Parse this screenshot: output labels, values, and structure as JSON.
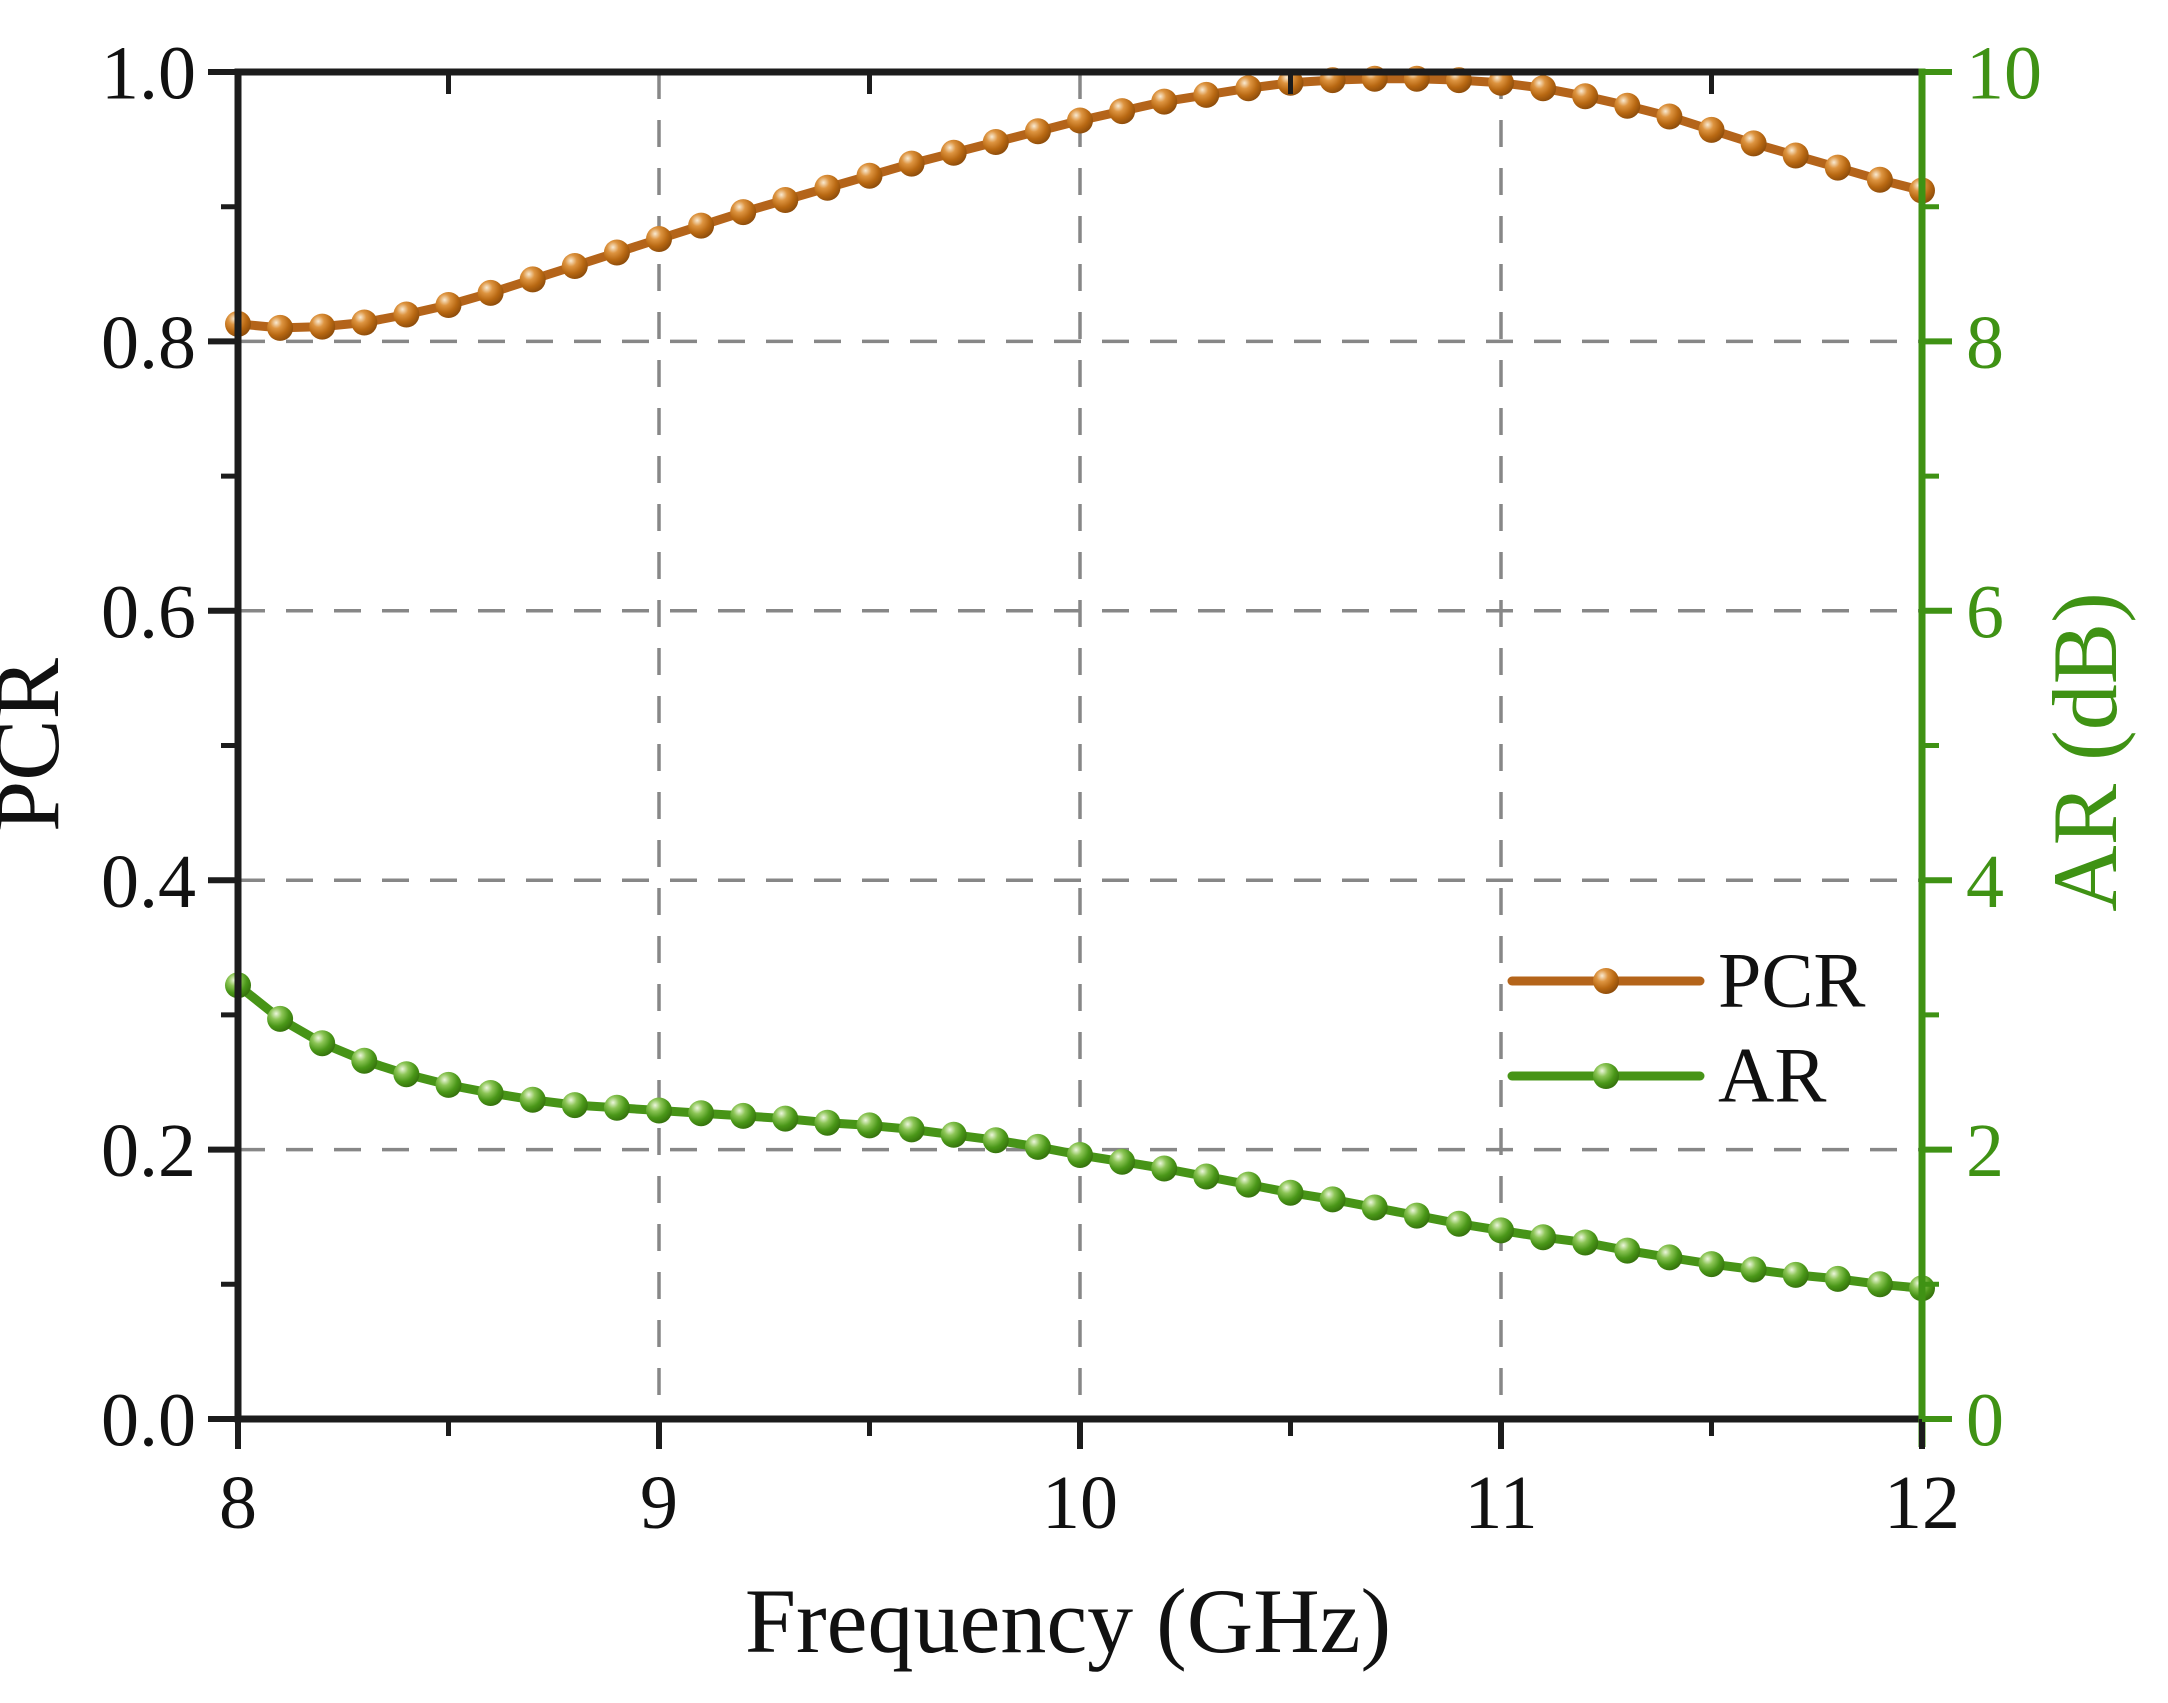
{
  "figure": {
    "xlabel": "Frequency (GHz)",
    "ylabel_left": "PCR",
    "ylabel_right": "AR (dB)"
  },
  "colors": {
    "pcr_line": "#b4641a",
    "ar_line": "#479417",
    "right_axis_green": "#3f9214",
    "grid_gray": "#878787",
    "axis_black": "#1c1c1c"
  },
  "chart_data": {
    "type": "line",
    "title": "",
    "xlabel": "Frequency (GHz)",
    "x_range": [
      8,
      12
    ],
    "x_major_ticks": [
      8,
      9,
      10,
      11,
      12
    ],
    "x_minor_ticks": [
      8.5,
      9.5,
      10.5,
      11.5
    ],
    "grid": "dashed gray; vertical at x=9,10,11; horizontal at left-axis 0.2,0.4,0.6,0.8",
    "grid_x": [
      9,
      10,
      11
    ],
    "grid_y_left": [
      0.2,
      0.4,
      0.6,
      0.8
    ],
    "left_axis": {
      "label": "PCR",
      "range": [
        0,
        1
      ],
      "major_ticks": [
        0,
        0.2,
        0.4,
        0.6,
        0.8,
        1.0
      ],
      "major_tick_labels": [
        "0.0",
        "0.2",
        "0.4",
        "0.6",
        "0.8",
        "1.0"
      ],
      "minor_ticks": [
        0.1,
        0.3,
        0.5,
        0.7,
        0.9
      ]
    },
    "right_axis": {
      "label": "AR (dB)",
      "range": [
        0,
        10
      ],
      "major_ticks": [
        0,
        2,
        4,
        6,
        8,
        10
      ],
      "major_tick_labels": [
        "0",
        "2",
        "4",
        "6",
        "8",
        "10"
      ],
      "minor_ticks": [
        1,
        3,
        5,
        7,
        9
      ]
    },
    "legend": {
      "position": "right-center, inside plot, no border",
      "entries": [
        "PCR",
        "AR"
      ]
    },
    "x": [
      8.0,
      8.1,
      8.2,
      8.3,
      8.4,
      8.5,
      8.6,
      8.7,
      8.8,
      8.9,
      9.0,
      9.1,
      9.2,
      9.3,
      9.4,
      9.5,
      9.6,
      9.7,
      9.8,
      9.9,
      10.0,
      10.1,
      10.2,
      10.3,
      10.4,
      10.5,
      10.6,
      10.7,
      10.8,
      10.9,
      11.0,
      11.1,
      11.2,
      11.3,
      11.4,
      11.5,
      11.6,
      11.7,
      11.8,
      11.9,
      12.0
    ],
    "series": [
      {
        "name": "PCR",
        "axis": "left",
        "color": "#b4641a",
        "values": [
          0.813,
          0.81,
          0.811,
          0.814,
          0.82,
          0.827,
          0.836,
          0.846,
          0.856,
          0.866,
          0.876,
          0.886,
          0.896,
          0.905,
          0.914,
          0.923,
          0.932,
          0.94,
          0.948,
          0.956,
          0.964,
          0.971,
          0.978,
          0.983,
          0.988,
          0.992,
          0.994,
          0.995,
          0.995,
          0.994,
          0.992,
          0.988,
          0.982,
          0.975,
          0.967,
          0.957,
          0.947,
          0.938,
          0.929,
          0.92,
          0.912
        ]
      },
      {
        "name": "AR",
        "axis": "right",
        "color": "#479417",
        "values": [
          3.22,
          2.97,
          2.79,
          2.66,
          2.56,
          2.48,
          2.42,
          2.37,
          2.33,
          2.31,
          2.29,
          2.27,
          2.25,
          2.23,
          2.2,
          2.18,
          2.15,
          2.11,
          2.07,
          2.02,
          1.96,
          1.91,
          1.86,
          1.8,
          1.74,
          1.68,
          1.63,
          1.57,
          1.51,
          1.45,
          1.4,
          1.35,
          1.31,
          1.25,
          1.2,
          1.15,
          1.11,
          1.07,
          1.04,
          1.0,
          0.97
        ]
      }
    ]
  }
}
